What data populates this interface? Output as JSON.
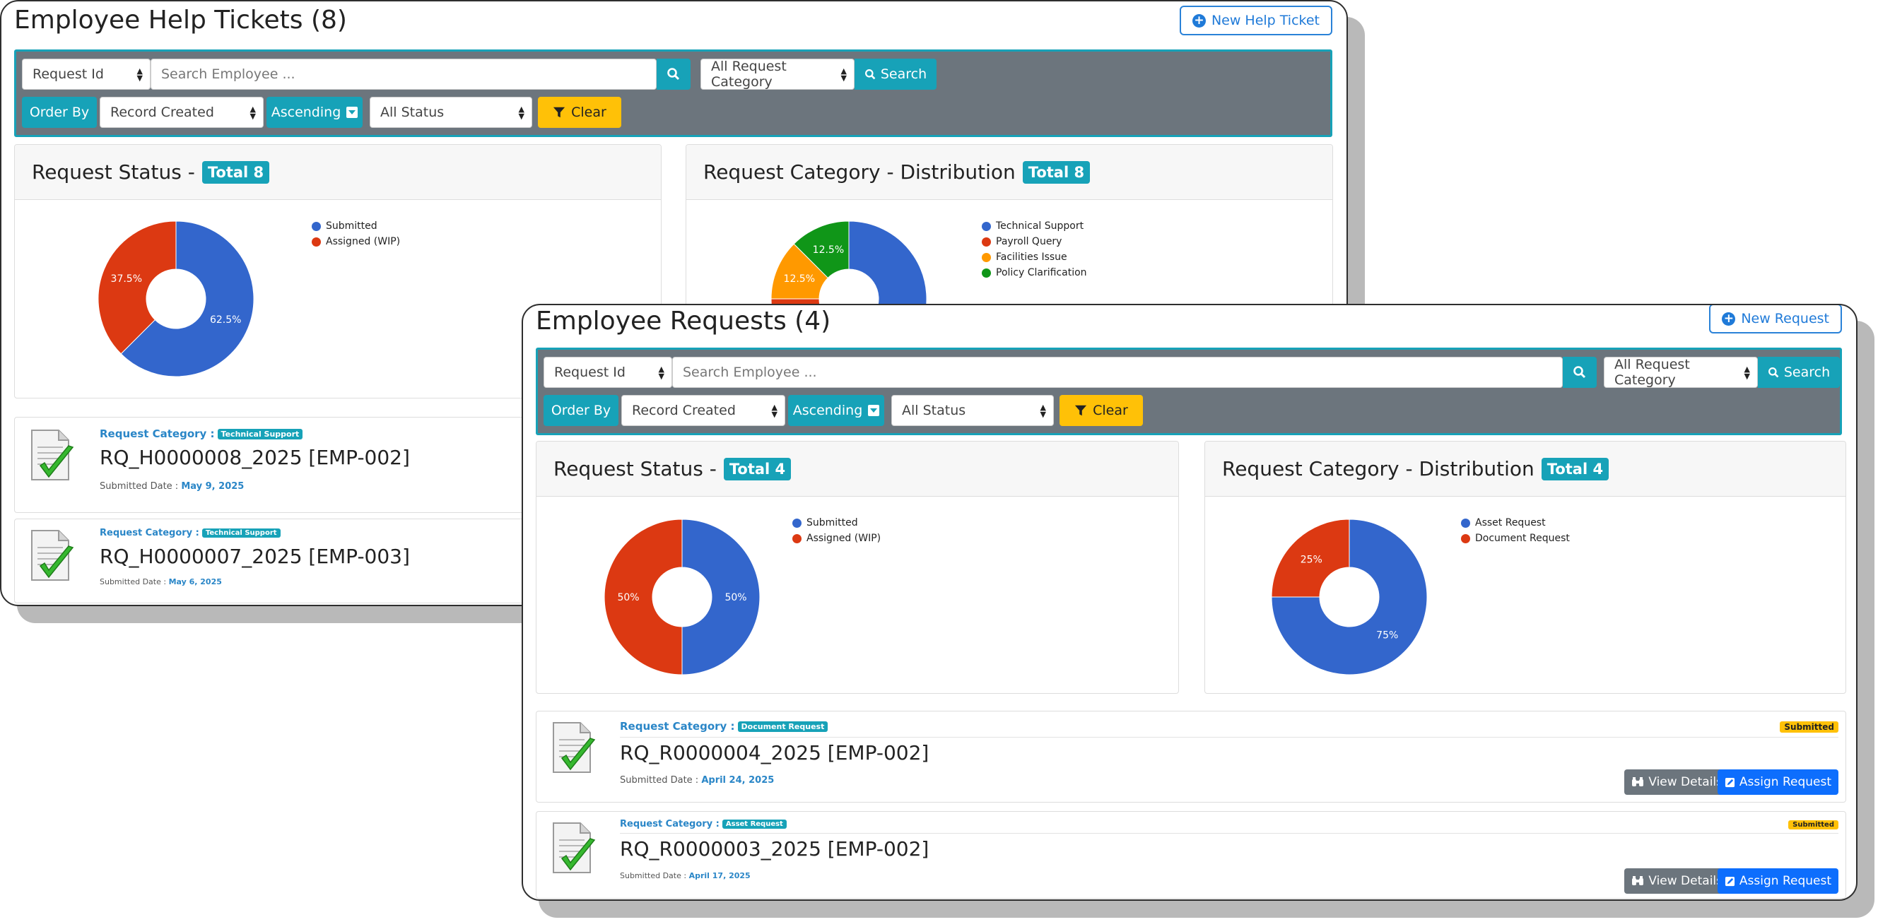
{
  "back": {
    "title": "Employee Help Tickets (8)",
    "new_button": "New Help Ticket",
    "filters": {
      "request_field": "Request Id",
      "search_placeholder": "Search Employee ...",
      "category": "All Request Category",
      "search_button": "Search",
      "order_by": "Order By",
      "sort_field": "Record Created",
      "direction": "Ascending",
      "status": "All Status",
      "clear": "Clear"
    },
    "status_card": {
      "title": "Request Status -",
      "badge": "Total 8"
    },
    "category_card": {
      "title": "Request Category - Distribution",
      "badge": "Total 8"
    },
    "requests": [
      {
        "category_label": "Request Category :",
        "category": "Technical Support",
        "id": "RQ_H0000008_2025 [EMP-002]",
        "date_label": "Submitted Date :",
        "date": "May 9, 2025"
      },
      {
        "category_label": "Request Category :",
        "category": "Technical Support",
        "id": "RQ_H0000007_2025 [EMP-003]",
        "date_label": "Submitted Date :",
        "date": "May 6, 2025"
      }
    ]
  },
  "front": {
    "title": "Employee Requests (4)",
    "new_button": "New Request",
    "filters": {
      "request_field": "Request Id",
      "search_placeholder": "Search Employee ...",
      "category": "All Request Category",
      "search_button": "Search",
      "order_by": "Order By",
      "sort_field": "Record Created",
      "direction": "Ascending",
      "status": "All Status",
      "clear": "Clear"
    },
    "status_card": {
      "title": "Request Status -",
      "badge": "Total 4"
    },
    "category_card": {
      "title": "Request Category - Distribution",
      "badge": "Total 4"
    },
    "requests": [
      {
        "category_label": "Request Category :",
        "category": "Document Request",
        "id": "RQ_R0000004_2025 [EMP-002]",
        "date_label": "Submitted Date :",
        "date": "April 24, 2025",
        "status": "Submitted",
        "view": "View Details",
        "assign": "Assign Request"
      },
      {
        "category_label": "Request Category :",
        "category": "Asset Request",
        "id": "RQ_R0000003_2025 [EMP-002]",
        "date_label": "Submitted Date :",
        "date": "April 17, 2025",
        "status": "Submitted",
        "view": "View Details",
        "assign": "Assign Request"
      }
    ]
  },
  "chart_data": [
    {
      "type": "pie",
      "title": "Request Status - Total 8",
      "categories": [
        "Submitted",
        "Assigned (WIP)"
      ],
      "values": [
        62.5,
        37.5
      ],
      "labels": [
        "62.5%",
        "37.5%"
      ],
      "colors": [
        "#3366cc",
        "#dc3912"
      ],
      "legend": "right"
    },
    {
      "type": "pie",
      "title": "Request Category - Distribution Total 8",
      "categories": [
        "Technical Support",
        "Payroll Query",
        "Facilities Issue",
        "Policy Clarification"
      ],
      "values": [
        62.5,
        12.5,
        12.5,
        12.5
      ],
      "labels": [
        "",
        "",
        "12.5%",
        "12.5%"
      ],
      "colors": [
        "#3366cc",
        "#dc3912",
        "#ff9900",
        "#109618"
      ],
      "legend": "right"
    },
    {
      "type": "pie",
      "title": "Request Status - Total 4",
      "categories": [
        "Submitted",
        "Assigned (WIP)"
      ],
      "values": [
        50,
        50
      ],
      "labels": [
        "50%",
        "50%"
      ],
      "colors": [
        "#3366cc",
        "#dc3912"
      ],
      "legend": "right"
    },
    {
      "type": "pie",
      "title": "Request Category - Distribution Total 4",
      "categories": [
        "Asset Request",
        "Document Request"
      ],
      "values": [
        75,
        25
      ],
      "labels": [
        "75%",
        "25%"
      ],
      "colors": [
        "#3366cc",
        "#dc3912"
      ],
      "legend": "right"
    }
  ]
}
